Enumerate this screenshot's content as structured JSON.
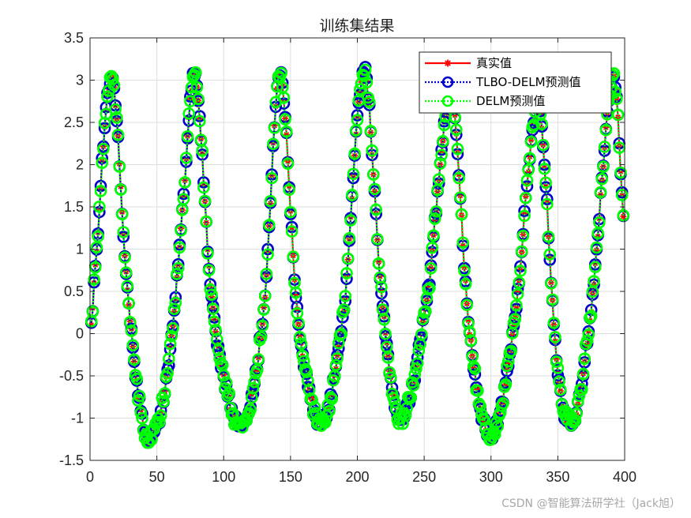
{
  "chart_data": {
    "type": "line",
    "title": "训练集结果",
    "xlabel": "",
    "ylabel": "",
    "xlim": [
      0,
      400
    ],
    "ylim": [
      -1.5,
      3.5
    ],
    "x_ticks": [
      0,
      50,
      100,
      150,
      200,
      250,
      300,
      350,
      400
    ],
    "y_ticks": [
      -1.5,
      -1,
      -0.5,
      0,
      0.5,
      1,
      1.5,
      2,
      2.5,
      3,
      3.5
    ],
    "grid": true,
    "legend_position": "top-right",
    "n_points": 399,
    "anchors": {
      "x": [
        1,
        5,
        10,
        16,
        28,
        44,
        60,
        70,
        78,
        90,
        100,
        113,
        130,
        142,
        155,
        173,
        190,
        205,
        218,
        232,
        252,
        270,
        284,
        300,
        318,
        335,
        350,
        360,
        375,
        392,
        399
      ],
      "y": [
        0.15,
        1.0,
        2.2,
        3.05,
        0.5,
        -1.25,
        -0.2,
        1.6,
        3.1,
        0.6,
        -0.5,
        -1.1,
        0.3,
        3.05,
        0.3,
        -1.05,
        0.3,
        3.1,
        0.5,
        -1.0,
        0.4,
        2.8,
        0.0,
        -1.2,
        0.2,
        2.7,
        -0.5,
        -1.05,
        0.3,
        3.0,
        1.4
      ]
    },
    "series": [
      {
        "name": "真实值",
        "color": "#ff0000",
        "marker": "asterisk",
        "line": "solid"
      },
      {
        "name": "TLBO-DELM预测值",
        "color": "#0000cc",
        "marker": "circle",
        "line": "dotted"
      },
      {
        "name": "DELM预测值",
        "color": "#00ff00",
        "marker": "circle",
        "line": "dotted"
      }
    ]
  },
  "watermark": "CSDN @智能算法研学社（Jack旭）"
}
